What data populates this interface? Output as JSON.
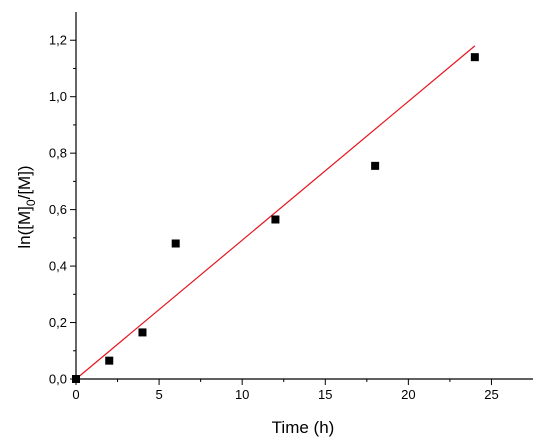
{
  "chart_data": {
    "type": "scatter",
    "title": "",
    "xlabel": "Time (h)",
    "ylabel": {
      "prefix": "ln([M]",
      "subscript": "0",
      "suffix": "/[M])"
    },
    "xlim": [
      0,
      27.5
    ],
    "ylim": [
      0,
      1.3
    ],
    "xticks": [
      0,
      5,
      10,
      15,
      20,
      25
    ],
    "xtick_labels": [
      "0",
      "5",
      "10",
      "15",
      "20",
      "25"
    ],
    "yticks": [
      0,
      0.2,
      0.4,
      0.6,
      0.8,
      1.0,
      1.2
    ],
    "ytick_labels": [
      "0,0",
      "0,2",
      "0,4",
      "0,6",
      "0,8",
      "1,0",
      "1,2"
    ],
    "grid": false,
    "series": [
      {
        "kind": "points",
        "color": "#000000",
        "x": [
          0,
          2,
          4,
          6,
          12,
          18,
          24
        ],
        "y": [
          0.0,
          0.065,
          0.165,
          0.48,
          0.565,
          0.755,
          1.14
        ]
      },
      {
        "kind": "fit-line",
        "color": "#e8141e",
        "x": [
          0,
          24
        ],
        "y": [
          0,
          1.18
        ]
      }
    ]
  }
}
